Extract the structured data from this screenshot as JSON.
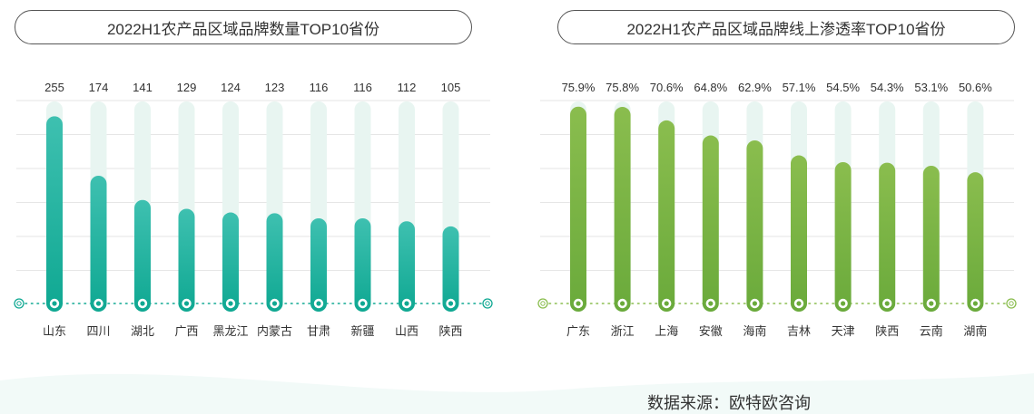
{
  "colors": {
    "track": "#e8f5f1",
    "grid": "#e6e6e6",
    "left_bar_top": "#3ec0b0",
    "left_bar_bottom": "#0fa892",
    "right_bar_top": "#8abd4e",
    "right_bar_bottom": "#6aaa3b",
    "label": "#333333",
    "node_ring": "#ffffff"
  },
  "chart_data": [
    {
      "type": "bar",
      "title": "2022H1农产品区域品牌数量TOP10省份",
      "categories": [
        "山东",
        "四川",
        "湖北",
        "广西",
        "黑龙江",
        "内蒙古",
        "甘肃",
        "新疆",
        "山西",
        "陕西"
      ],
      "values": [
        255,
        174,
        141,
        129,
        124,
        123,
        116,
        116,
        112,
        105
      ],
      "value_labels": [
        "255",
        "174",
        "141",
        "129",
        "124",
        "123",
        "116",
        "116",
        "112",
        "105"
      ],
      "ylim": [
        0,
        290
      ],
      "grid": true
    },
    {
      "type": "bar",
      "title": "2022H1农产品区域品牌线上渗透率TOP10省份",
      "categories": [
        "广东",
        "浙江",
        "上海",
        "安徽",
        "海南",
        "吉林",
        "天津",
        "陕西",
        "云南",
        "湖南"
      ],
      "values": [
        75.9,
        75.8,
        70.6,
        64.8,
        62.9,
        57.1,
        54.5,
        54.3,
        53.1,
        50.6
      ],
      "value_labels": [
        "75.9%",
        "75.8%",
        "70.6%",
        "64.8%",
        "62.9%",
        "57.1%",
        "54.5%",
        "54.3%",
        "53.1%",
        "50.6%"
      ],
      "ylim": [
        0,
        80
      ],
      "grid": true
    }
  ],
  "source_text": "数据来源：欧特欧咨询"
}
